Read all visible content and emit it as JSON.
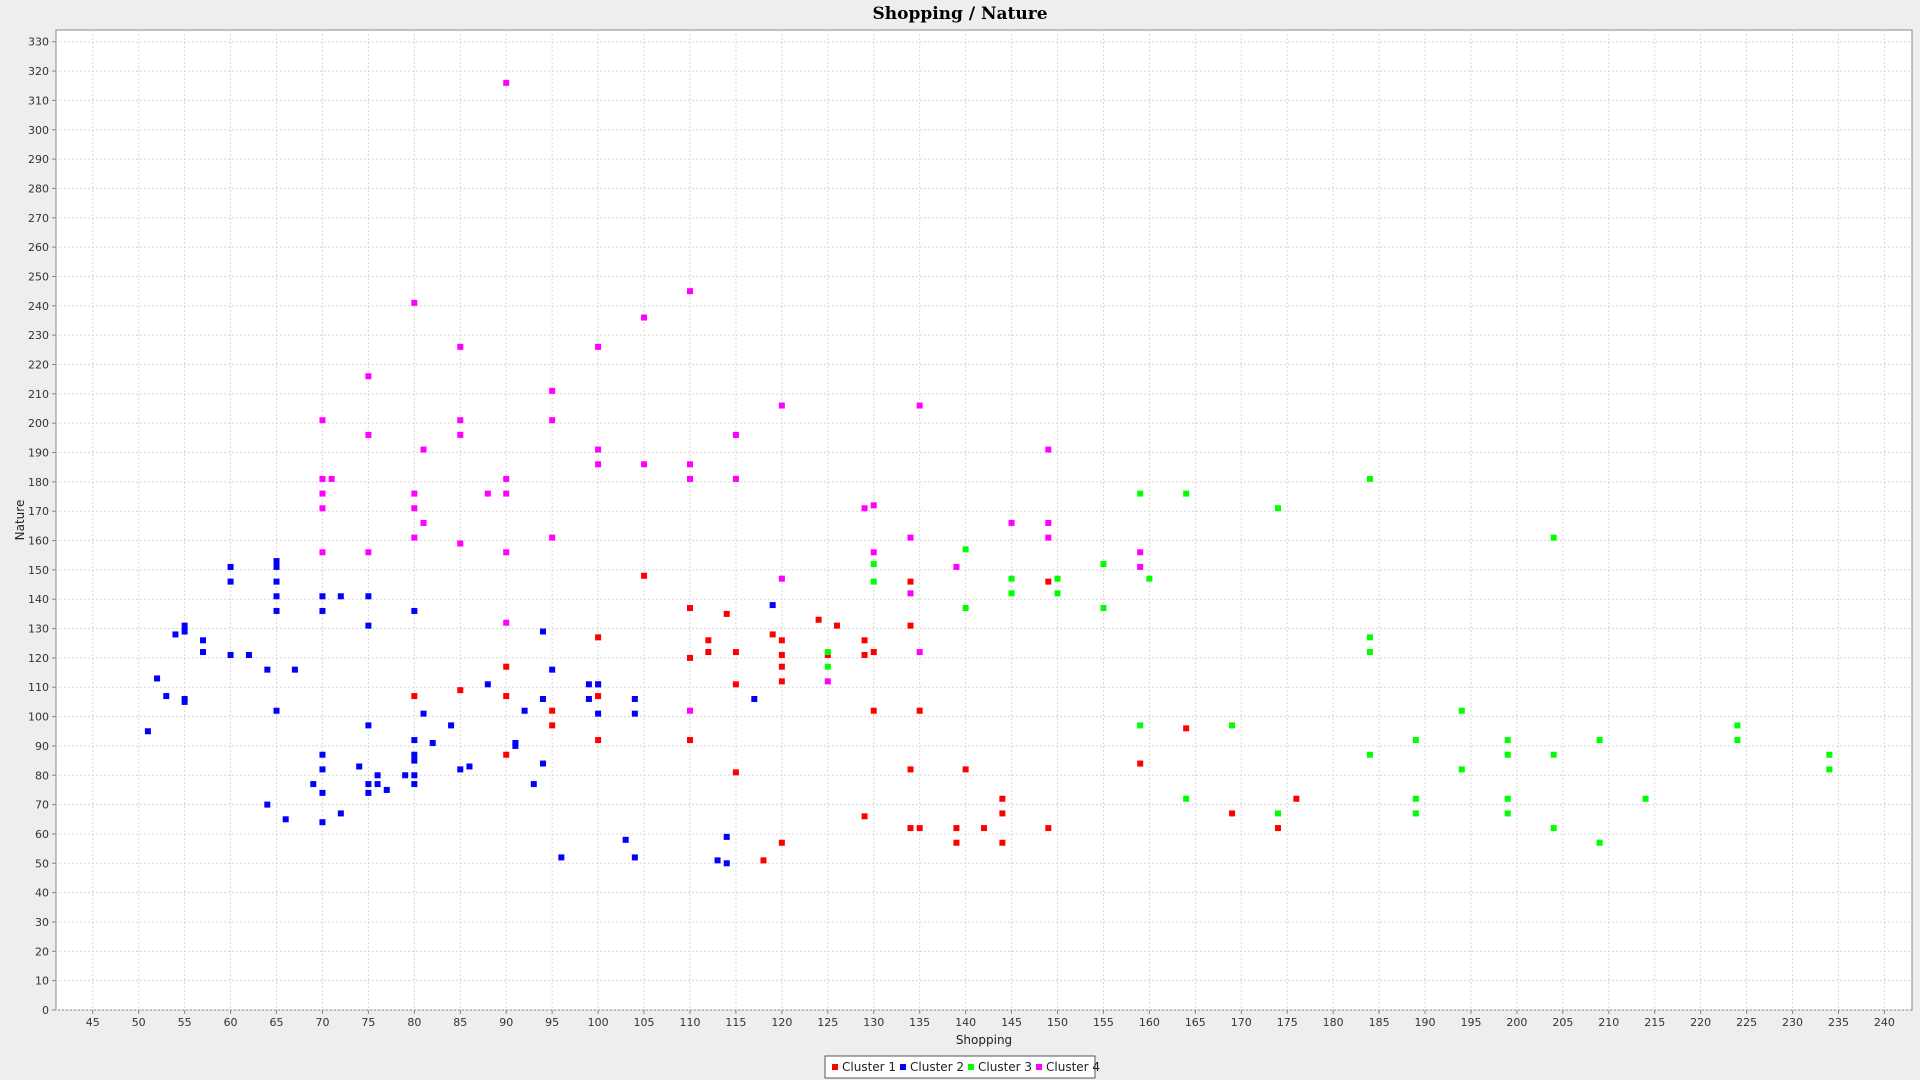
{
  "chart_data": {
    "type": "scatter",
    "title": "Shopping / Nature",
    "xlabel": "Shopping",
    "ylabel": "Nature",
    "xlim": [
      41,
      243
    ],
    "ylim": [
      0,
      334
    ],
    "x_ticks": [
      45,
      50,
      55,
      60,
      65,
      70,
      75,
      80,
      85,
      90,
      95,
      100,
      105,
      110,
      115,
      120,
      125,
      130,
      135,
      140,
      145,
      150,
      155,
      160,
      165,
      170,
      175,
      180,
      185,
      190,
      195,
      200,
      205,
      210,
      215,
      220,
      225,
      230,
      235,
      240
    ],
    "y_ticks": [
      0,
      10,
      20,
      30,
      40,
      50,
      60,
      70,
      80,
      90,
      100,
      110,
      120,
      130,
      140,
      150,
      160,
      170,
      180,
      190,
      200,
      210,
      220,
      230,
      240,
      250,
      260,
      270,
      280,
      290,
      300,
      310,
      320,
      330
    ],
    "grid": true,
    "legend_position": "bottom-center",
    "series": [
      {
        "name": "Cluster 1",
        "color": "#ff0000",
        "points": [
          [
            80,
            107
          ],
          [
            85,
            109
          ],
          [
            90,
            117
          ],
          [
            90,
            107
          ],
          [
            90,
            87
          ],
          [
            95,
            102
          ],
          [
            95,
            97
          ],
          [
            100,
            127
          ],
          [
            100,
            111
          ],
          [
            100,
            107
          ],
          [
            100,
            92
          ],
          [
            105,
            148
          ],
          [
            110,
            137
          ],
          [
            110,
            120
          ],
          [
            110,
            92
          ],
          [
            112,
            126
          ],
          [
            112,
            122
          ],
          [
            114,
            135
          ],
          [
            115,
            122
          ],
          [
            115,
            111
          ],
          [
            115,
            81
          ],
          [
            118,
            51
          ],
          [
            119,
            128
          ],
          [
            120,
            126
          ],
          [
            120,
            121
          ],
          [
            120,
            117
          ],
          [
            120,
            112
          ],
          [
            120,
            57
          ],
          [
            124,
            133
          ],
          [
            125,
            121
          ],
          [
            126,
            131
          ],
          [
            129,
            126
          ],
          [
            129,
            121
          ],
          [
            129,
            66
          ],
          [
            130,
            122
          ],
          [
            130,
            102
          ],
          [
            134,
            146
          ],
          [
            134,
            131
          ],
          [
            134,
            82
          ],
          [
            134,
            62
          ],
          [
            135,
            102
          ],
          [
            135,
            62
          ],
          [
            139,
            62
          ],
          [
            139,
            57
          ],
          [
            140,
            82
          ],
          [
            142,
            62
          ],
          [
            144,
            72
          ],
          [
            144,
            67
          ],
          [
            144,
            57
          ],
          [
            149,
            146
          ],
          [
            149,
            62
          ],
          [
            159,
            84
          ],
          [
            164,
            96
          ],
          [
            169,
            67
          ],
          [
            174,
            62
          ],
          [
            176,
            72
          ]
        ]
      },
      {
        "name": "Cluster 2",
        "color": "#0000ff",
        "points": [
          [
            51,
            95
          ],
          [
            52,
            113
          ],
          [
            53,
            107
          ],
          [
            54,
            128
          ],
          [
            55,
            131
          ],
          [
            55,
            129
          ],
          [
            55,
            106
          ],
          [
            55,
            105
          ],
          [
            57,
            126
          ],
          [
            57,
            122
          ],
          [
            60,
            151
          ],
          [
            60,
            146
          ],
          [
            60,
            121
          ],
          [
            62,
            121
          ],
          [
            64,
            116
          ],
          [
            64,
            70
          ],
          [
            65,
            153
          ],
          [
            65,
            151
          ],
          [
            65,
            146
          ],
          [
            65,
            141
          ],
          [
            65,
            136
          ],
          [
            65,
            102
          ],
          [
            66,
            65
          ],
          [
            67,
            116
          ],
          [
            69,
            77
          ],
          [
            70,
            141
          ],
          [
            70,
            136
          ],
          [
            70,
            87
          ],
          [
            70,
            82
          ],
          [
            70,
            74
          ],
          [
            70,
            64
          ],
          [
            72,
            141
          ],
          [
            72,
            67
          ],
          [
            74,
            83
          ],
          [
            75,
            141
          ],
          [
            75,
            131
          ],
          [
            75,
            97
          ],
          [
            75,
            77
          ],
          [
            75,
            74
          ],
          [
            76,
            80
          ],
          [
            76,
            77
          ],
          [
            77,
            75
          ],
          [
            79,
            80
          ],
          [
            80,
            136
          ],
          [
            80,
            92
          ],
          [
            80,
            87
          ],
          [
            80,
            85
          ],
          [
            80,
            80
          ],
          [
            80,
            77
          ],
          [
            81,
            101
          ],
          [
            82,
            91
          ],
          [
            84,
            97
          ],
          [
            85,
            82
          ],
          [
            86,
            83
          ],
          [
            88,
            111
          ],
          [
            91,
            91
          ],
          [
            91,
            90
          ],
          [
            92,
            102
          ],
          [
            93,
            77
          ],
          [
            94,
            129
          ],
          [
            94,
            106
          ],
          [
            94,
            84
          ],
          [
            95,
            116
          ],
          [
            96,
            52
          ],
          [
            99,
            111
          ],
          [
            99,
            106
          ],
          [
            100,
            111
          ],
          [
            100,
            101
          ],
          [
            103,
            58
          ],
          [
            104,
            106
          ],
          [
            104,
            101
          ],
          [
            104,
            52
          ],
          [
            113,
            51
          ],
          [
            114,
            59
          ],
          [
            114,
            50
          ],
          [
            117,
            106
          ],
          [
            119,
            138
          ]
        ]
      },
      {
        "name": "Cluster 3",
        "color": "#00ff00",
        "points": [
          [
            125,
            122
          ],
          [
            125,
            117
          ],
          [
            130,
            152
          ],
          [
            130,
            146
          ],
          [
            140,
            157
          ],
          [
            140,
            137
          ],
          [
            145,
            147
          ],
          [
            145,
            142
          ],
          [
            150,
            147
          ],
          [
            150,
            142
          ],
          [
            155,
            152
          ],
          [
            155,
            137
          ],
          [
            159,
            176
          ],
          [
            159,
            97
          ],
          [
            160,
            147
          ],
          [
            164,
            176
          ],
          [
            164,
            72
          ],
          [
            169,
            97
          ],
          [
            174,
            171
          ],
          [
            174,
            67
          ],
          [
            184,
            181
          ],
          [
            184,
            127
          ],
          [
            184,
            122
          ],
          [
            184,
            87
          ],
          [
            189,
            92
          ],
          [
            189,
            72
          ],
          [
            189,
            67
          ],
          [
            194,
            102
          ],
          [
            194,
            82
          ],
          [
            199,
            92
          ],
          [
            199,
            87
          ],
          [
            199,
            72
          ],
          [
            199,
            67
          ],
          [
            204,
            161
          ],
          [
            204,
            87
          ],
          [
            204,
            62
          ],
          [
            209,
            92
          ],
          [
            209,
            57
          ],
          [
            214,
            72
          ],
          [
            224,
            97
          ],
          [
            224,
            92
          ],
          [
            234,
            87
          ],
          [
            234,
            82
          ]
        ]
      },
      {
        "name": "Cluster 4",
        "color": "#ff00ff",
        "points": [
          [
            70,
            201
          ],
          [
            70,
            181
          ],
          [
            70,
            176
          ],
          [
            70,
            171
          ],
          [
            70,
            156
          ],
          [
            71,
            181
          ],
          [
            75,
            216
          ],
          [
            75,
            196
          ],
          [
            75,
            156
          ],
          [
            80,
            241
          ],
          [
            80,
            176
          ],
          [
            80,
            171
          ],
          [
            80,
            161
          ],
          [
            81,
            191
          ],
          [
            81,
            166
          ],
          [
            85,
            226
          ],
          [
            85,
            201
          ],
          [
            85,
            196
          ],
          [
            85,
            159
          ],
          [
            88,
            176
          ],
          [
            90,
            316
          ],
          [
            90,
            181
          ],
          [
            90,
            176
          ],
          [
            90,
            156
          ],
          [
            90,
            132
          ],
          [
            95,
            211
          ],
          [
            95,
            201
          ],
          [
            95,
            161
          ],
          [
            100,
            226
          ],
          [
            100,
            191
          ],
          [
            100,
            186
          ],
          [
            105,
            236
          ],
          [
            105,
            186
          ],
          [
            110,
            245
          ],
          [
            110,
            186
          ],
          [
            110,
            181
          ],
          [
            110,
            102
          ],
          [
            115,
            196
          ],
          [
            115,
            181
          ],
          [
            120,
            206
          ],
          [
            120,
            147
          ],
          [
            125,
            112
          ],
          [
            129,
            171
          ],
          [
            130,
            172
          ],
          [
            130,
            156
          ],
          [
            134,
            161
          ],
          [
            134,
            142
          ],
          [
            135,
            206
          ],
          [
            135,
            122
          ],
          [
            139,
            151
          ],
          [
            145,
            166
          ],
          [
            149,
            191
          ],
          [
            149,
            166
          ],
          [
            149,
            161
          ],
          [
            159,
            156
          ],
          [
            159,
            151
          ]
        ]
      }
    ]
  }
}
